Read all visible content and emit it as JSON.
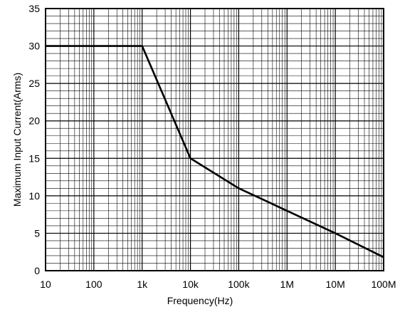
{
  "chart_data": {
    "type": "line",
    "title": "",
    "xlabel": "Frequency(Hz)",
    "ylabel": "Maximum  Input Current(Arms)",
    "x_scale": "log",
    "xlim": [
      10,
      100000000
    ],
    "ylim": [
      0,
      35
    ],
    "grid": true,
    "x_ticks": [
      10,
      100,
      1000,
      10000,
      100000,
      1000000,
      10000000,
      100000000
    ],
    "x_tick_labels": [
      "10",
      "100",
      "1k",
      "10k",
      "100k",
      "1M",
      "10M",
      "100M"
    ],
    "y_ticks": [
      0,
      5,
      10,
      15,
      20,
      25,
      30,
      35
    ],
    "y_tick_labels": [
      "0",
      "5",
      "10",
      "15",
      "20",
      "25",
      "30",
      "35"
    ],
    "series": [
      {
        "color": "#000000",
        "points": [
          {
            "x": 10,
            "y": 30
          },
          {
            "x": 1000,
            "y": 30
          },
          {
            "x": 10000,
            "y": 15
          },
          {
            "x": 100000,
            "y": 11
          },
          {
            "x": 1000000,
            "y": 8
          },
          {
            "x": 10000000,
            "y": 5
          },
          {
            "x": 100000000,
            "y": 1.8
          }
        ]
      }
    ]
  }
}
